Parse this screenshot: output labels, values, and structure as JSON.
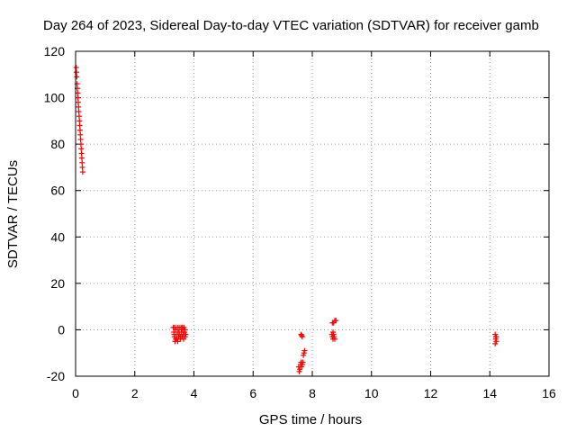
{
  "chart_data": {
    "type": "scatter",
    "title": "Day 264 of 2023, Sidereal Day-to-day VTEC variation (SDTVAR) for receiver gamb",
    "xlabel": "GPS time / hours",
    "ylabel": "SDTVAR / TECUs",
    "xlim": [
      0,
      16
    ],
    "ylim": [
      -20,
      120
    ],
    "xticks": [
      0,
      2,
      4,
      6,
      8,
      10,
      12,
      14,
      16
    ],
    "yticks": [
      -20,
      0,
      20,
      40,
      60,
      80,
      100,
      120
    ],
    "grid": true,
    "marker": "plus",
    "color": "#ff0000",
    "series": [
      {
        "name": "SDTVAR",
        "points": [
          [
            0.02,
            113
          ],
          [
            0.03,
            111
          ],
          [
            0.04,
            109
          ],
          [
            0.05,
            106
          ],
          [
            0.06,
            104
          ],
          [
            0.07,
            102
          ],
          [
            0.08,
            100
          ],
          [
            0.09,
            98
          ],
          [
            0.1,
            96
          ],
          [
            0.11,
            94
          ],
          [
            0.12,
            92
          ],
          [
            0.13,
            90
          ],
          [
            0.14,
            88
          ],
          [
            0.15,
            86
          ],
          [
            0.16,
            84
          ],
          [
            0.17,
            82
          ],
          [
            0.18,
            80
          ],
          [
            0.19,
            78
          ],
          [
            0.2,
            76
          ],
          [
            0.21,
            74
          ],
          [
            0.22,
            72
          ],
          [
            0.23,
            70
          ],
          [
            0.24,
            68
          ],
          [
            3.3,
            1
          ],
          [
            3.32,
            -1
          ],
          [
            3.34,
            -3
          ],
          [
            3.36,
            -5
          ],
          [
            3.38,
            0
          ],
          [
            3.4,
            -2
          ],
          [
            3.42,
            -4
          ],
          [
            3.44,
            1
          ],
          [
            3.46,
            -1
          ],
          [
            3.48,
            -3
          ],
          [
            3.5,
            0
          ],
          [
            3.52,
            -2
          ],
          [
            3.54,
            -4
          ],
          [
            3.56,
            1
          ],
          [
            3.58,
            -1
          ],
          [
            3.6,
            -3
          ],
          [
            3.62,
            0
          ],
          [
            3.64,
            -2
          ],
          [
            3.66,
            1
          ],
          [
            3.68,
            -1
          ],
          [
            3.7,
            0
          ],
          [
            3.72,
            -2
          ],
          [
            3.35,
            1
          ],
          [
            3.45,
            -5
          ],
          [
            3.55,
            -3
          ],
          [
            3.65,
            -4
          ],
          [
            3.38,
            -4
          ],
          [
            3.5,
            1
          ],
          [
            3.6,
            1
          ],
          [
            3.7,
            -3
          ],
          [
            3.33,
            -2
          ],
          [
            3.47,
            -2
          ],
          [
            7.62,
            -2
          ],
          [
            7.64,
            -2.5
          ],
          [
            7.66,
            -3
          ],
          [
            7.72,
            -10
          ],
          [
            7.74,
            -9
          ],
          [
            7.7,
            -11
          ],
          [
            7.54,
            -16
          ],
          [
            7.58,
            -17
          ],
          [
            7.6,
            -15
          ],
          [
            7.62,
            -14
          ],
          [
            7.64,
            -16
          ],
          [
            7.66,
            -15
          ],
          [
            7.68,
            -14
          ],
          [
            7.56,
            -18
          ],
          [
            8.66,
            -2
          ],
          [
            8.68,
            -3
          ],
          [
            8.7,
            -4
          ],
          [
            8.72,
            -2
          ],
          [
            8.74,
            -3
          ],
          [
            8.76,
            -4
          ],
          [
            8.7,
            -1
          ],
          [
            8.68,
            3
          ],
          [
            8.72,
            3
          ],
          [
            8.76,
            4
          ],
          [
            8.8,
            4
          ],
          [
            14.18,
            -2
          ],
          [
            14.2,
            -3
          ],
          [
            14.2,
            -4
          ],
          [
            14.22,
            -5
          ],
          [
            14.18,
            -6
          ],
          [
            14.22,
            -3
          ]
        ]
      }
    ]
  }
}
